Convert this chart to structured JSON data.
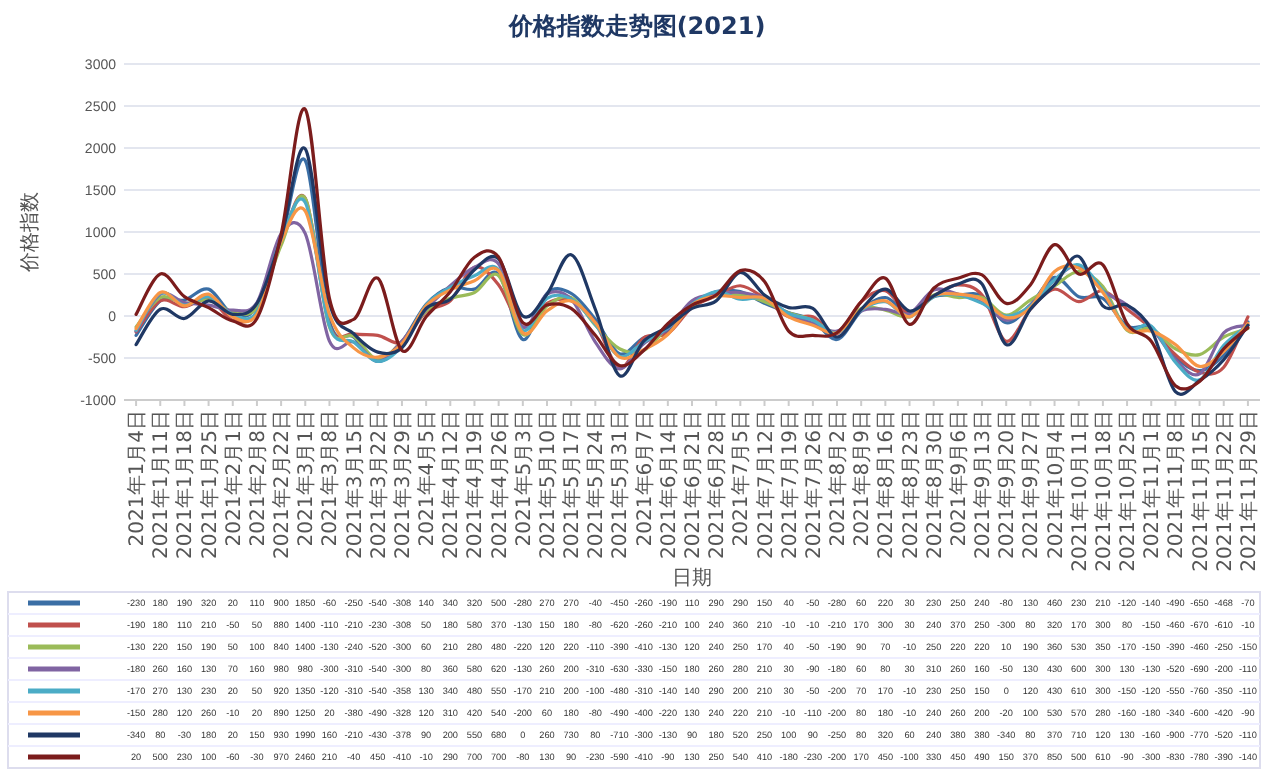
{
  "chart_data": {
    "type": "line",
    "title": "价格指数走势图(2021)",
    "xlabel": "日期",
    "ylabel": "价格指数",
    "categories": [
      "2021年1月4日",
      "2021年1月11日",
      "2021年1月18日",
      "2021年1月25日",
      "2021年2月1日",
      "2021年2月8日",
      "2021年2月22日",
      "2021年3月1日",
      "2021年3月8日",
      "2021年3月15日",
      "2021年3月22日",
      "2021年3月29日",
      "2021年4月5日",
      "2021年4月12日",
      "2021年4月19日",
      "2021年4月26日",
      "2021年5月3日",
      "2021年5月10日",
      "2021年5月17日",
      "2021年5月24日",
      "2021年5月31日",
      "2021年6月7日",
      "2021年6月14日",
      "2021年6月21日",
      "2021年6月28日",
      "2021年7月5日",
      "2021年7月12日",
      "2021年7月19日",
      "2021年7月26日",
      "2021年8月2日",
      "2021年8月9日",
      "2021年8月16日",
      "2021年8月23日",
      "2021年8月30日",
      "2021年9月6日",
      "2021年9月13日",
      "2021年9月20日",
      "2021年9月27日",
      "2021年10月4日",
      "2021年10月11日",
      "2021年10月18日",
      "2021年10月25日",
      "2021年11月1日",
      "2021年11月8日",
      "2021年11月15日",
      "2021年11月22日",
      "2021年11月29日"
    ],
    "series": [
      {
        "color": "#3a6ea5",
        "values": [
          -230,
          180,
          190,
          320,
          20,
          110,
          900,
          1850,
          -60,
          -250,
          -540,
          -308,
          140,
          340,
          320,
          500,
          -280,
          270,
          270,
          -40,
          -450,
          -260,
          -190,
          110,
          290,
          290,
          150,
          40,
          -50,
          -280,
          60,
          220,
          30,
          230,
          250,
          240,
          -80,
          130,
          460,
          230,
          210,
          -120,
          -140,
          -490,
          -650,
          -468,
          -70
        ]
      },
      {
        "color": "#c0504d",
        "values": [
          -190,
          180,
          110,
          210,
          -50,
          50,
          880,
          1400,
          -110,
          -210,
          -230,
          -308,
          50,
          180,
          580,
          370,
          -130,
          150,
          180,
          -80,
          -620,
          -260,
          -210,
          100,
          240,
          360,
          210,
          -10,
          -10,
          -210,
          170,
          300,
          30,
          240,
          370,
          250,
          -300,
          80,
          320,
          170,
          300,
          80,
          -150,
          -460,
          -670,
          -610,
          -10
        ]
      },
      {
        "color": "#9bbb59",
        "values": [
          -130,
          220,
          150,
          190,
          50,
          100,
          840,
          1400,
          -130,
          -240,
          -520,
          -300,
          60,
          210,
          280,
          480,
          -220,
          120,
          220,
          -110,
          -390,
          -410,
          -130,
          120,
          240,
          250,
          170,
          40,
          -50,
          -190,
          90,
          70,
          -10,
          250,
          220,
          220,
          10,
          190,
          360,
          530,
          350,
          -170,
          -150,
          -390,
          -460,
          -250,
          -150
        ]
      },
      {
        "color": "#8064a2",
        "values": [
          -180,
          260,
          160,
          130,
          70,
          160,
          980,
          980,
          -300,
          -310,
          -540,
          -300,
          80,
          360,
          580,
          620,
          -130,
          260,
          200,
          -310,
          -630,
          -330,
          -150,
          180,
          260,
          280,
          210,
          30,
          -90,
          -180,
          60,
          80,
          30,
          310,
          260,
          160,
          -50,
          130,
          430,
          600,
          300,
          130,
          -130,
          -520,
          -690,
          -200,
          -110
        ]
      },
      {
        "color": "#4bacc6",
        "values": [
          -170,
          270,
          130,
          230,
          20,
          50,
          920,
          1350,
          -120,
          -310,
          -540,
          -358,
          130,
          340,
          480,
          550,
          -170,
          210,
          200,
          -100,
          -480,
          -310,
          -140,
          140,
          290,
          200,
          210,
          30,
          -50,
          -200,
          70,
          170,
          -10,
          230,
          250,
          150,
          0,
          120,
          430,
          610,
          300,
          -150,
          -120,
          -550,
          -760,
          -350,
          -110
        ]
      },
      {
        "color": "#f79646",
        "values": [
          -150,
          280,
          120,
          260,
          -10,
          20,
          890,
          1250,
          20,
          -380,
          -490,
          -328,
          120,
          310,
          420,
          540,
          -200,
          60,
          180,
          -80,
          -490,
          -400,
          -220,
          130,
          240,
          220,
          210,
          -10,
          -110,
          -200,
          80,
          180,
          -10,
          240,
          260,
          200,
          -20,
          100,
          530,
          570,
          280,
          -160,
          -180,
          -340,
          -600,
          -420,
          -90
        ]
      },
      {
        "color": "#1f3864",
        "values": [
          -340,
          80,
          -30,
          180,
          20,
          150,
          930,
          1990,
          160,
          -210,
          -430,
          -378,
          90,
          200,
          550,
          680,
          0,
          260,
          730,
          80,
          -710,
          -300,
          -130,
          90,
          180,
          520,
          250,
          100,
          90,
          -250,
          80,
          320,
          60,
          240,
          380,
          380,
          -340,
          80,
          370,
          710,
          120,
          130,
          -160,
          -900,
          -770,
          -520,
          -110
        ]
      },
      {
        "color": "#7b1c1c",
        "values": [
          20,
          500,
          230,
          100,
          -60,
          -30,
          970,
          2460,
          210,
          -40,
          450,
          -410,
          -10,
          290,
          700,
          700,
          -80,
          130,
          90,
          -230,
          -590,
          -410,
          -90,
          130,
          250,
          540,
          410,
          -180,
          -230,
          -200,
          170,
          450,
          -100,
          330,
          450,
          490,
          150,
          370,
          850,
          500,
          610,
          -90,
          -300,
          -830,
          -780,
          -390,
          -140
        ]
      }
    ],
    "ylim": [
      -1000,
      3000
    ],
    "yticks": [
      -1000,
      -500,
      0,
      500,
      1000,
      1500,
      2000,
      2500,
      3000
    ],
    "grid": "y",
    "data_labels": true
  }
}
